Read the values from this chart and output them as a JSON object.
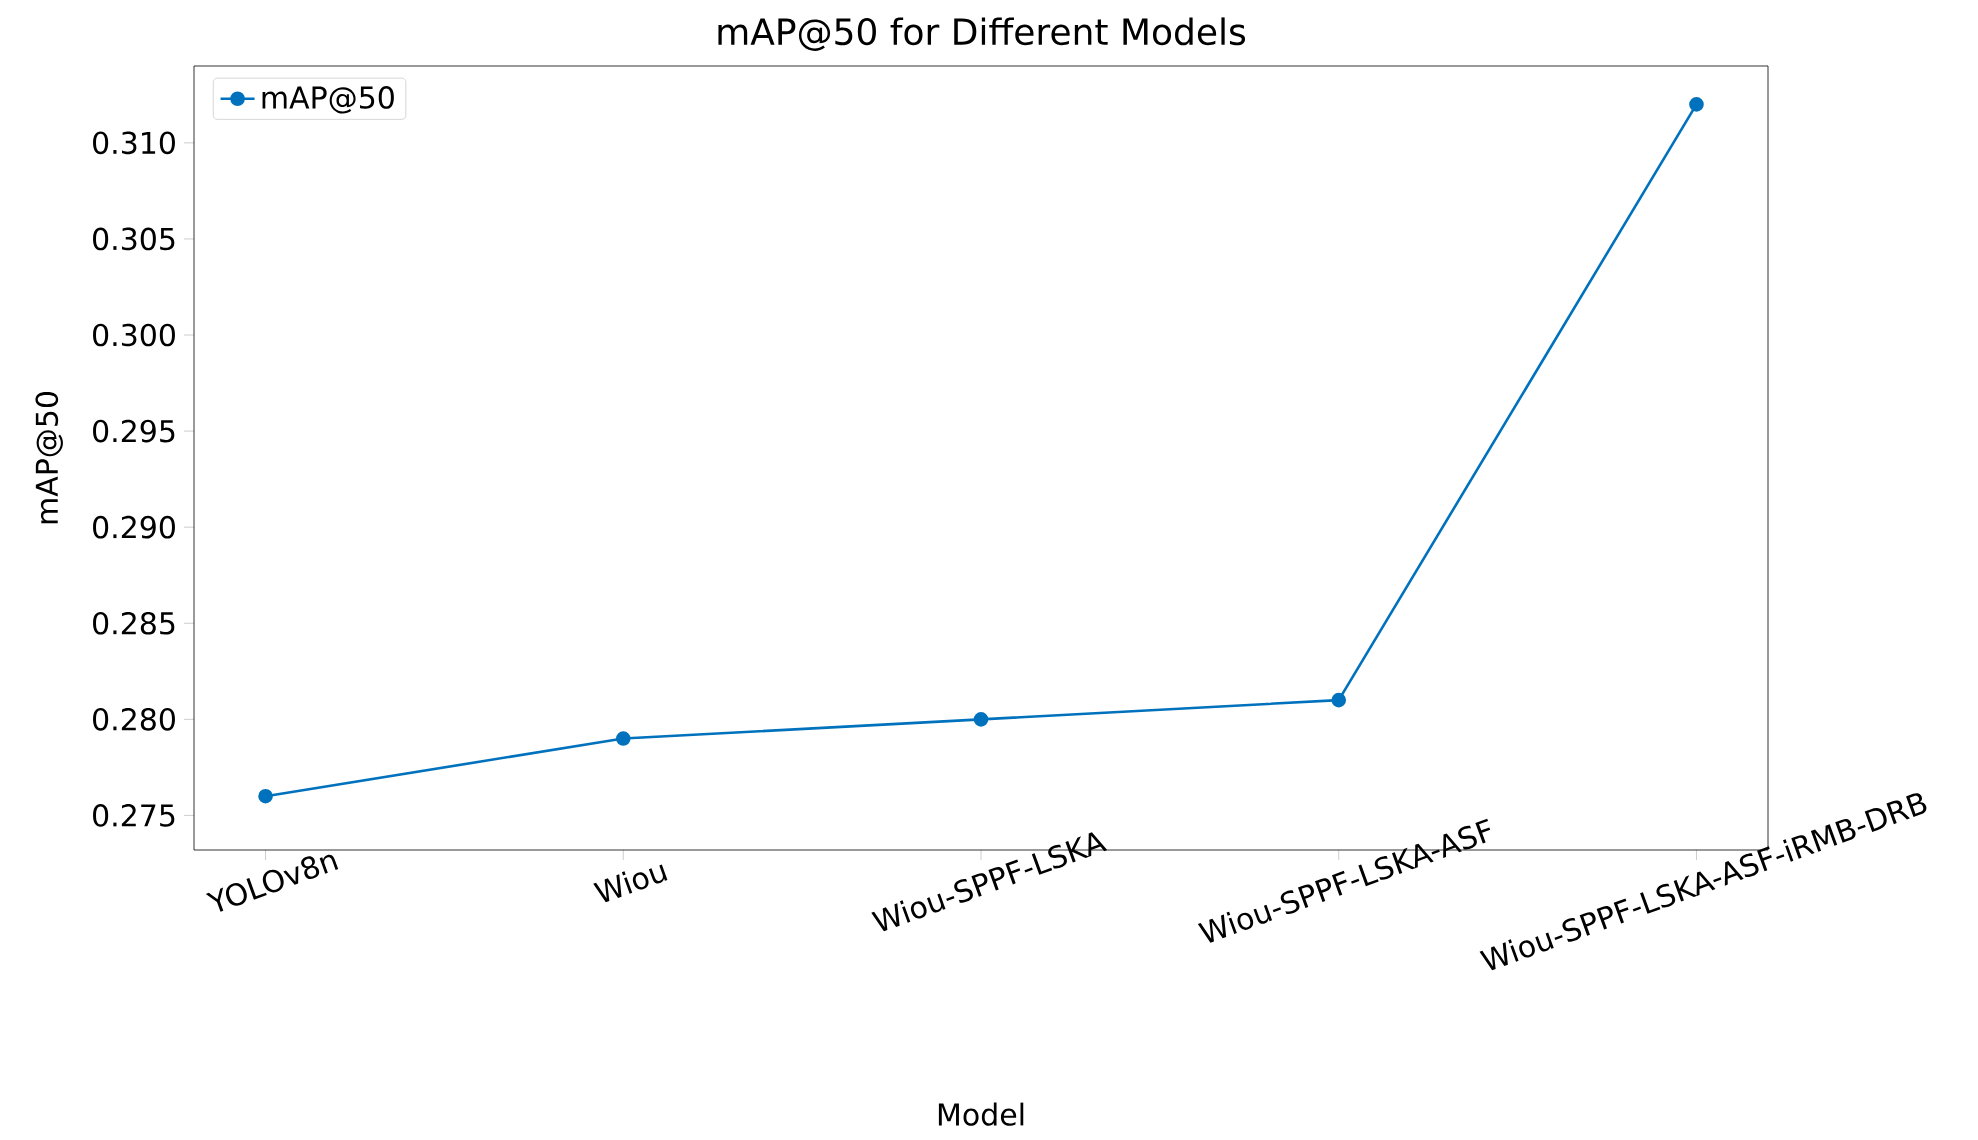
{
  "chart_data": {
    "type": "line",
    "title": "mAP@50 for Different Models",
    "xlabel": "Model",
    "ylabel": "mAP@50",
    "categories": [
      "YOLOv8n",
      "Wiou",
      "Wiou-SPPF-LSKA",
      "Wiou-SPPF-LSKA-ASF",
      "Wiou-SPPF-LSKA-ASF-iRMB-DRB"
    ],
    "series": [
      {
        "name": "mAP@50",
        "color": "#0072bd",
        "values": [
          0.276,
          0.279,
          0.28,
          0.281,
          0.312
        ]
      }
    ],
    "ylim": [
      0.2732,
      0.314
    ],
    "yticks": [
      0.275,
      {
        "value": 0.28,
        "label": "0.280"
      },
      0.285,
      {
        "value": 0.29,
        "label": "0.290"
      },
      0.295,
      {
        "value": 0.3,
        "label": "0.300"
      },
      0.305,
      {
        "value": 0.31,
        "label": "0.310"
      }
    ],
    "legend": "top left",
    "marker": "circle",
    "line_style": "solid"
  }
}
